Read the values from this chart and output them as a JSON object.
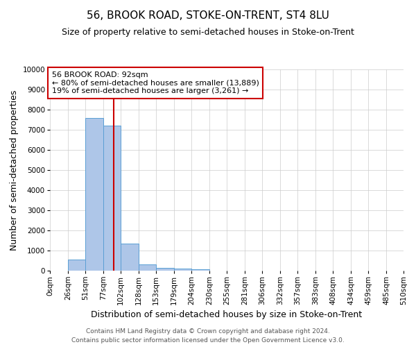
{
  "title": "56, BROOK ROAD, STOKE-ON-TRENT, ST4 8LU",
  "subtitle": "Size of property relative to semi-detached houses in Stoke-on-Trent",
  "xlabel": "Distribution of semi-detached houses by size in Stoke-on-Trent",
  "ylabel": "Number of semi-detached properties",
  "footnote": "Contains HM Land Registry data © Crown copyright and database right 2024.\nContains public sector information licensed under the Open Government Licence v3.0.",
  "bin_edges": [
    0,
    26,
    51,
    77,
    102,
    128,
    153,
    179,
    204,
    230,
    255,
    281,
    306,
    332,
    357,
    383,
    408,
    434,
    459,
    485,
    510
  ],
  "bar_heights": [
    0,
    550,
    7600,
    7200,
    1350,
    300,
    150,
    100,
    75,
    0,
    0,
    0,
    0,
    0,
    0,
    0,
    0,
    0,
    0,
    0
  ],
  "bar_color": "#aec6e8",
  "bar_edgecolor": "#5a9fd4",
  "property_size": 92,
  "redline_color": "#cc0000",
  "annotation_text": "56 BROOK ROAD: 92sqm\n← 80% of semi-detached houses are smaller (13,889)\n19% of semi-detached houses are larger (3,261) →",
  "annotation_box_edgecolor": "#cc0000",
  "annotation_box_facecolor": "#ffffff",
  "ylim": [
    0,
    10000
  ],
  "yticks": [
    0,
    1000,
    2000,
    3000,
    4000,
    5000,
    6000,
    7000,
    8000,
    9000,
    10000
  ],
  "xtick_labels": [
    "0sqm",
    "26sqm",
    "51sqm",
    "77sqm",
    "102sqm",
    "128sqm",
    "153sqm",
    "179sqm",
    "204sqm",
    "230sqm",
    "255sqm",
    "281sqm",
    "306sqm",
    "332sqm",
    "357sqm",
    "383sqm",
    "408sqm",
    "434sqm",
    "459sqm",
    "485sqm",
    "510sqm"
  ],
  "grid_color": "#cccccc",
  "background_color": "#ffffff",
  "title_fontsize": 11,
  "subtitle_fontsize": 9,
  "axis_label_fontsize": 9,
  "tick_fontsize": 7.5,
  "annotation_fontsize": 8,
  "footnote_fontsize": 6.5
}
